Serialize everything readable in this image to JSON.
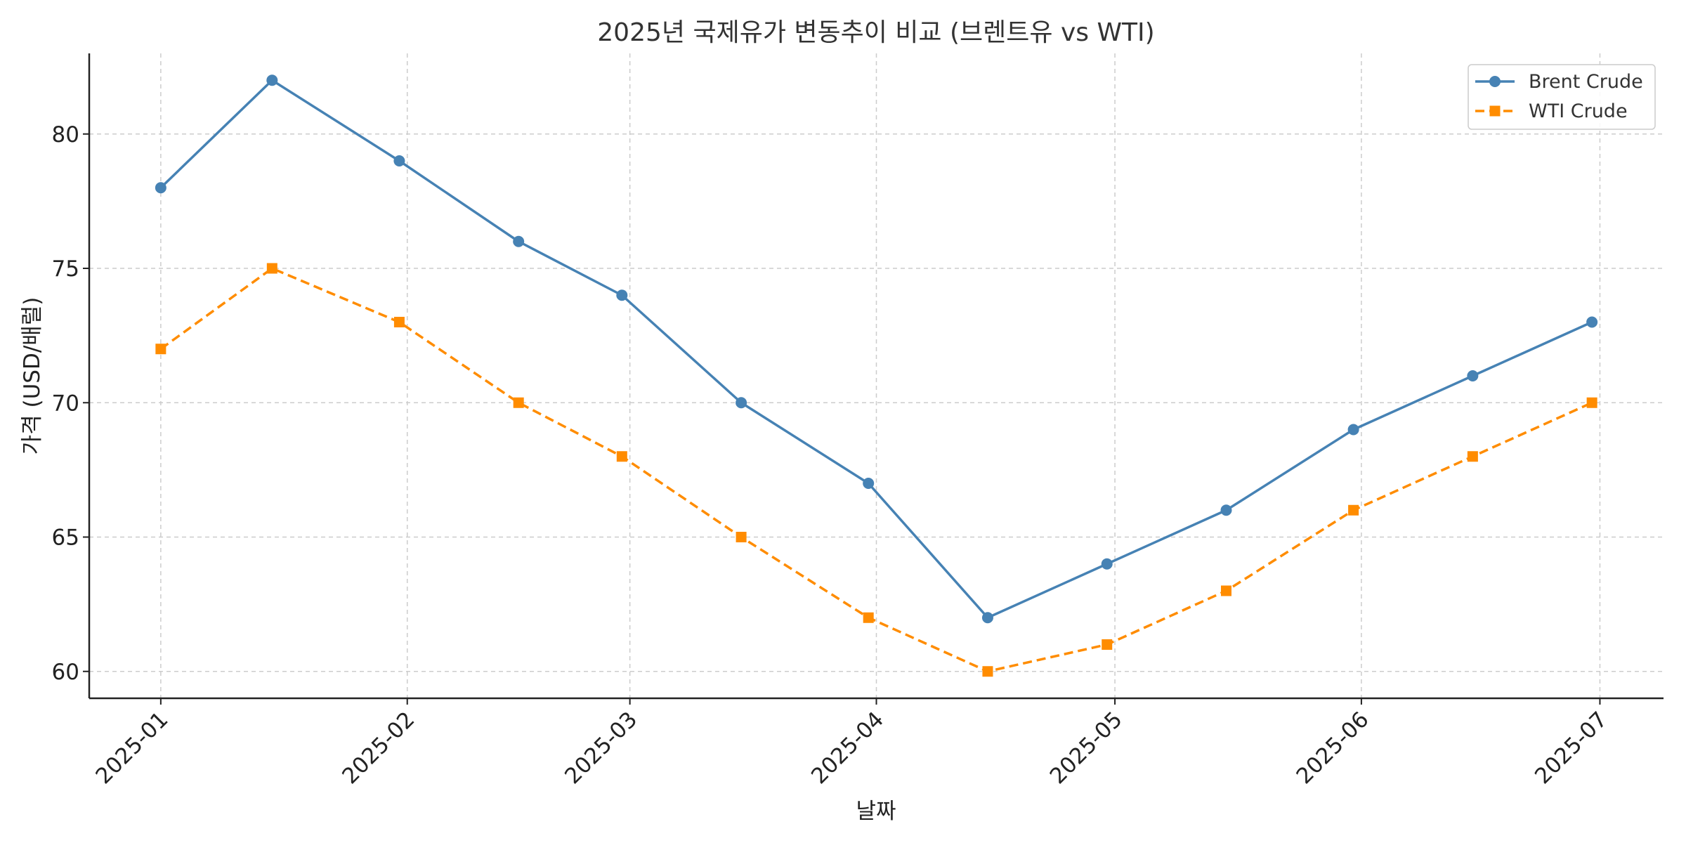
{
  "chart_data": {
    "type": "line",
    "title": "2025년 국제유가 변동추이 비교 (브렌트유 vs WTI)",
    "xlabel": "날짜",
    "ylabel": "가격 (USD/배럴)",
    "x_ticks": [
      "2025-01",
      "2025-02",
      "2025-03",
      "2025-04",
      "2025-05",
      "2025-06",
      "2025-07"
    ],
    "x": [
      "2025-01-01",
      "2025-01-15",
      "2025-01-31",
      "2025-02-15",
      "2025-02-28",
      "2025-03-15",
      "2025-03-31",
      "2025-04-15",
      "2025-04-30",
      "2025-05-15",
      "2025-05-31",
      "2025-06-15",
      "2025-06-30"
    ],
    "xlim": [
      "2024-12-23",
      "2025-07-09"
    ],
    "ylim": [
      59,
      83
    ],
    "y_ticks": [
      60,
      65,
      70,
      75,
      80
    ],
    "grid": true,
    "legend_position": "top-right",
    "series": [
      {
        "name": "Brent Crude",
        "color": "#4682b4",
        "marker": "circle",
        "line_style": "solid",
        "values": [
          78,
          82,
          79,
          76,
          74,
          70,
          67,
          62,
          64,
          66,
          69,
          71,
          73
        ]
      },
      {
        "name": "WTI Crude",
        "color": "#ff8c00",
        "marker": "square",
        "line_style": "dashed",
        "values": [
          72,
          75,
          73,
          70,
          68,
          65,
          62,
          60,
          61,
          63,
          66,
          68,
          70
        ]
      }
    ]
  }
}
